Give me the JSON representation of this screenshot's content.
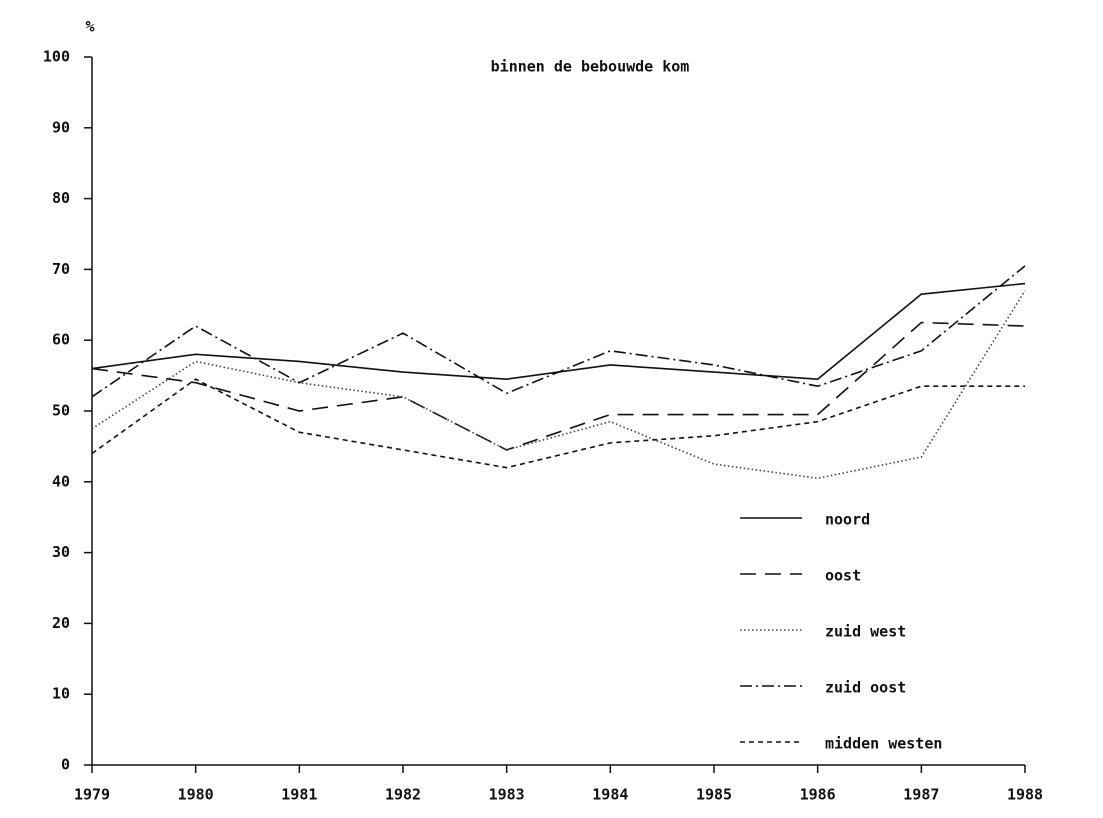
{
  "chart_data": {
    "type": "line",
    "title": "binnen de bebouwde kom",
    "y_label": "%",
    "x": [
      1979,
      1980,
      1981,
      1982,
      1983,
      1984,
      1985,
      1986,
      1987,
      1988
    ],
    "xlim": [
      1979,
      1988
    ],
    "xticks": [
      1979,
      1980,
      1981,
      1982,
      1983,
      1984,
      1985,
      1986,
      1987,
      1988
    ],
    "ylim": [
      0,
      100
    ],
    "yticks": [
      0,
      10,
      20,
      30,
      40,
      50,
      60,
      70,
      80,
      90,
      100
    ],
    "grid": false,
    "legend": "lower right",
    "series": [
      {
        "name": "noord",
        "color": "#111111",
        "linestyle": "solid",
        "values": [
          56,
          58,
          57,
          55.5,
          54.5,
          56.5,
          55.5,
          54.5,
          66.5,
          68
        ]
      },
      {
        "name": "oost",
        "color": "#111111",
        "linestyle": "dashed",
        "values": [
          56,
          54,
          50,
          52,
          44.5,
          49.5,
          49.5,
          49.5,
          62.5,
          62
        ]
      },
      {
        "name": "zuid west",
        "color": "#444444",
        "linestyle": "dotted",
        "values": [
          47.5,
          57,
          54,
          52,
          44.5,
          48.5,
          42.5,
          40.5,
          43.5,
          67
        ]
      },
      {
        "name": "zuid oost",
        "color": "#111111",
        "linestyle": "dashdot",
        "values": [
          52,
          62,
          54,
          61,
          52.5,
          58.5,
          56.5,
          53.5,
          58.5,
          70.5
        ]
      },
      {
        "name": "midden westen",
        "color": "#111111",
        "linestyle": "shortdash",
        "values": [
          44,
          54.5,
          47,
          44.5,
          42,
          45.5,
          46.5,
          48.5,
          53.5,
          53.5
        ]
      }
    ]
  }
}
